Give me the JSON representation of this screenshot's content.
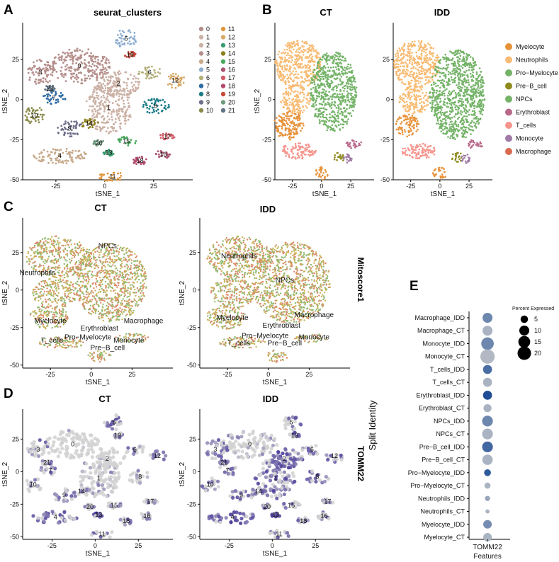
{
  "panels": {
    "a": {
      "letter": "A",
      "title": "seurat_clusters"
    },
    "b": {
      "letter": "B",
      "title_ct": "CT",
      "title_idd": "IDD"
    },
    "c": {
      "letter": "C",
      "title_ct": "CT",
      "title_idd": "IDD",
      "side_label": "Mitoscore1"
    },
    "d": {
      "letter": "D",
      "title_ct": "CT",
      "title_idd": "IDD",
      "side_label": "TOMM22"
    },
    "e": {
      "letter": "E"
    }
  },
  "colors": {
    "grey": "#d3d3d3",
    "expr_low": "#c7bfdf",
    "expr_high": "#4b3d9a",
    "mito1": "#c8b45a",
    "mito2": "#d98a6a",
    "mito3": "#8fb870",
    "dot_dark": "#1f4e96",
    "dot_grey": "#cccccc"
  },
  "chart_data": [
    {
      "id": "A",
      "type": "scatter",
      "title": "seurat_clusters",
      "xlabel": "tSNE_1",
      "ylabel": "tSNE_2",
      "xticks": [
        -25,
        0,
        25
      ],
      "yticks": [
        -50,
        -25,
        0,
        25
      ],
      "xlim": [
        -42,
        45
      ],
      "ylim": [
        -50,
        48
      ],
      "legend": [
        "0",
        "1",
        "2",
        "3",
        "4",
        "5",
        "6",
        "7",
        "8",
        "9",
        "10",
        "11",
        "12",
        "13",
        "14",
        "15",
        "16",
        "17",
        "18",
        "19",
        "20",
        "21"
      ],
      "cluster_colors": [
        "#b58f8c",
        "#cbb0a4",
        "#cbb0a4",
        "#b58f8c",
        "#c7a98b",
        "#8faed1",
        "#b5b07a",
        "#2c6aa3",
        "#1c7d88",
        "#6e6f8c",
        "#8a8a4c",
        "#e0953a",
        "#d7a968",
        "#3a9b6e",
        "#8b7f1c",
        "#4aa85d",
        "#a8556f",
        "#d05d67",
        "#b34a6e",
        "#c54a3a",
        "#6f9a7d",
        "#5f7385"
      ],
      "clusters": [
        {
          "id": "0",
          "cx": -13,
          "cy": 21,
          "rx": 16,
          "ry": 11
        },
        {
          "id": "1",
          "cx": 2,
          "cy": -5,
          "rx": 12,
          "ry": 16
        },
        {
          "id": "2",
          "cx": 7,
          "cy": 10,
          "rx": 11,
          "ry": 8
        },
        {
          "id": "3",
          "cx": -33,
          "cy": 17,
          "rx": 7,
          "ry": 8
        },
        {
          "id": "4",
          "cx": -23,
          "cy": -35,
          "rx": 14,
          "ry": 5
        },
        {
          "id": "5",
          "cx": 11,
          "cy": 38,
          "rx": 6,
          "ry": 6
        },
        {
          "id": "6",
          "cx": 23,
          "cy": 17,
          "rx": 6,
          "ry": 4
        },
        {
          "id": "7",
          "cx": -26,
          "cy": 1,
          "rx": 6,
          "ry": 4
        },
        {
          "id": "8",
          "cx": 26,
          "cy": -4,
          "rx": 7,
          "ry": 5
        },
        {
          "id": "9",
          "cx": -18,
          "cy": -18,
          "rx": 7,
          "ry": 5
        },
        {
          "id": "10",
          "cx": -36,
          "cy": -10,
          "rx": 5,
          "ry": 6
        },
        {
          "id": "11",
          "cx": 4,
          "cy": -48,
          "rx": 7,
          "ry": 3
        },
        {
          "id": "12",
          "cx": 36,
          "cy": 12,
          "rx": 5,
          "ry": 5
        },
        {
          "id": "13",
          "cx": 2,
          "cy": -33,
          "rx": 3,
          "ry": 2
        },
        {
          "id": "14",
          "cx": -8,
          "cy": -15,
          "rx": 5,
          "ry": 3
        },
        {
          "id": "15",
          "cx": 11,
          "cy": -26,
          "rx": 5,
          "ry": 3
        },
        {
          "id": "16",
          "cx": 30,
          "cy": -34,
          "rx": 4,
          "ry": 3
        },
        {
          "id": "17",
          "cx": 32,
          "cy": -23,
          "rx": 4,
          "ry": 2
        },
        {
          "id": "18",
          "cx": 18,
          "cy": -38,
          "rx": 4,
          "ry": 3
        },
        {
          "id": "19",
          "cx": 13,
          "cy": 28,
          "rx": 3,
          "ry": 2
        },
        {
          "id": "20",
          "cx": -3,
          "cy": -27,
          "rx": 3,
          "ry": 2
        },
        {
          "id": "21",
          "cx": -28,
          "cy": 7,
          "rx": 3,
          "ry": 2
        }
      ]
    },
    {
      "id": "B",
      "type": "scatter",
      "titles": [
        "CT",
        "IDD"
      ],
      "xlabel": "tSNE_1",
      "ylabel": "tSNE_2",
      "xticks": [
        -25,
        0,
        25
      ],
      "yticks": [
        -50,
        -25,
        0,
        25
      ],
      "xlim": [
        -40,
        45
      ],
      "ylim": [
        -50,
        48
      ],
      "legend": [
        "Myelocyte",
        "Neutrophils",
        "Pro−Myelocyte",
        "Pre−B_cell",
        "NPCs",
        "Erythroblast",
        "T_cells",
        "Monocyte",
        "Macrophage"
      ],
      "celltype_colors": [
        "#e8923a",
        "#f8bb73",
        "#74b368",
        "#8f8a1e",
        "#74b368",
        "#b8688a",
        "#f5948c",
        "#a07aa6",
        "#d96a4e"
      ],
      "regions_ct": [
        {
          "type": "Neutrophils",
          "cx": -20,
          "cy": 22,
          "rx": 20,
          "ry": 15
        },
        {
          "type": "Neutrophils",
          "cx": -22,
          "cy": 0,
          "rx": 13,
          "ry": 9
        },
        {
          "type": "Myelocyte",
          "cx": -28,
          "cy": -16,
          "rx": 13,
          "ry": 9
        },
        {
          "type": "NPCs",
          "cx": 10,
          "cy": 5,
          "rx": 20,
          "ry": 25
        },
        {
          "type": "T_cells",
          "cx": -20,
          "cy": -32,
          "rx": 15,
          "ry": 5
        },
        {
          "type": "Myelocyte",
          "cx": 0,
          "cy": -46,
          "rx": 6,
          "ry": 4
        },
        {
          "type": "Pre−B_cell",
          "cx": 15,
          "cy": -36,
          "rx": 5,
          "ry": 3
        },
        {
          "type": "Erythroblast",
          "cx": 28,
          "cy": -28,
          "rx": 7,
          "ry": 3
        },
        {
          "type": "Monocyte",
          "cx": 22,
          "cy": -37,
          "rx": 4,
          "ry": 3
        }
      ],
      "regions_idd": [
        {
          "type": "Neutrophils",
          "cx": -20,
          "cy": 22,
          "rx": 20,
          "ry": 15
        },
        {
          "type": "Neutrophils",
          "cx": -22,
          "cy": 0,
          "rx": 13,
          "ry": 9
        },
        {
          "type": "Myelocyte",
          "cx": -28,
          "cy": -16,
          "rx": 10,
          "ry": 7
        },
        {
          "type": "NPCs",
          "cx": 15,
          "cy": 3,
          "rx": 24,
          "ry": 28
        },
        {
          "type": "T_cells",
          "cx": -18,
          "cy": -32,
          "rx": 15,
          "ry": 5
        },
        {
          "type": "Myelocyte",
          "cx": 0,
          "cy": -46,
          "rx": 6,
          "ry": 4
        },
        {
          "type": "Pre−B_cell",
          "cx": 15,
          "cy": -36,
          "rx": 5,
          "ry": 3
        },
        {
          "type": "Erythroblast",
          "cx": 30,
          "cy": -28,
          "rx": 7,
          "ry": 3
        },
        {
          "type": "Monocyte",
          "cx": 22,
          "cy": -37,
          "rx": 4,
          "ry": 3
        }
      ]
    },
    {
      "id": "C",
      "type": "scatter",
      "titles": [
        "CT",
        "IDD"
      ],
      "feature": "Mitoscore1",
      "xlabel": "tSNE_1",
      "ylabel": "tSNE_2",
      "xticks": [
        -25,
        0,
        25
      ],
      "yticks": [
        -50,
        -25,
        0,
        25
      ],
      "xlim": [
        -42,
        50
      ],
      "ylim": [
        -52,
        48
      ],
      "annotations_ct": [
        {
          "text": "NPCs",
          "x": 10,
          "y": 28
        },
        {
          "text": "Neutrophils",
          "x": -33,
          "y": 10
        },
        {
          "text": "Myelocyte",
          "x": -25,
          "y": -22
        },
        {
          "text": "Erythroblast",
          "x": 5,
          "y": -27
        },
        {
          "text": "Macrophage",
          "x": 32,
          "y": -22
        },
        {
          "text": "T_cells",
          "x": -24,
          "y": -35
        },
        {
          "text": "Pro−Myelocyte",
          "x": -2,
          "y": -33
        },
        {
          "text": "Monocyte",
          "x": 23,
          "y": -35
        },
        {
          "text": "Pre−B_cell",
          "x": 10,
          "y": -40
        }
      ],
      "annotations_idd": [
        {
          "text": "Neutrophils",
          "x": -18,
          "y": 21
        },
        {
          "text": "NPCs",
          "x": 10,
          "y": 5
        },
        {
          "text": "Myelocyte",
          "x": -22,
          "y": -20
        },
        {
          "text": "Macrophage",
          "x": 28,
          "y": -18
        },
        {
          "text": "Erythroblast",
          "x": 8,
          "y": -25
        },
        {
          "text": "Pro−Myelocyte",
          "x": -2,
          "y": -32
        },
        {
          "text": "T_cells",
          "x": -18,
          "y": -37
        },
        {
          "text": "Pre−B_cell",
          "x": 10,
          "y": -37
        },
        {
          "text": "Monocyte",
          "x": 28,
          "y": -33
        }
      ],
      "regions_ct": [
        {
          "cx": -20,
          "cy": 22,
          "rx": 20,
          "ry": 14
        },
        {
          "cx": -22,
          "cy": -2,
          "rx": 14,
          "ry": 10
        },
        {
          "cx": -26,
          "cy": -18,
          "rx": 12,
          "ry": 8
        },
        {
          "cx": 12,
          "cy": 5,
          "rx": 22,
          "ry": 26
        },
        {
          "cx": -18,
          "cy": -35,
          "rx": 14,
          "ry": 4
        },
        {
          "cx": 5,
          "cy": -44,
          "rx": 7,
          "ry": 4
        },
        {
          "cx": 25,
          "cy": -32,
          "rx": 10,
          "ry": 3
        }
      ],
      "regions_idd": [
        {
          "cx": -18,
          "cy": 22,
          "rx": 20,
          "ry": 14
        },
        {
          "cx": -22,
          "cy": -2,
          "rx": 14,
          "ry": 10
        },
        {
          "cx": -26,
          "cy": -18,
          "rx": 12,
          "ry": 8
        },
        {
          "cx": 14,
          "cy": 5,
          "rx": 24,
          "ry": 27
        },
        {
          "cx": -16,
          "cy": -35,
          "rx": 14,
          "ry": 4
        },
        {
          "cx": 5,
          "cy": -44,
          "rx": 7,
          "ry": 4
        },
        {
          "cx": 26,
          "cy": -32,
          "rx": 10,
          "ry": 3
        }
      ]
    },
    {
      "id": "D",
      "type": "scatter",
      "titles": [
        "CT",
        "IDD"
      ],
      "feature": "TOMM22",
      "xlabel": "tSNE_1",
      "ylabel": "tSNE_2",
      "xticks": [
        -25,
        0,
        25
      ],
      "yticks": [
        -50,
        -25,
        0,
        25
      ],
      "xlim": [
        -42,
        45
      ],
      "ylim": [
        -52,
        48
      ],
      "cluster_labels": [
        "0",
        "1",
        "2",
        "3",
        "4",
        "5",
        "6",
        "7",
        "8",
        "9",
        "10",
        "11",
        "12",
        "13",
        "14",
        "15",
        "16",
        "17",
        "18",
        "19",
        "20",
        "21"
      ],
      "expression_ct": [
        0.1,
        0.3,
        0.15,
        0.55,
        0.7,
        0.75,
        0.5,
        0.6,
        0.35,
        0.6,
        0.5,
        0.65,
        0.7,
        0.8,
        0.6,
        0.55,
        0.6,
        0.5,
        0.6,
        0.5,
        0.55,
        0.6
      ],
      "expression_idd": [
        0.35,
        0.7,
        0.75,
        0.6,
        0.75,
        0.6,
        0.65,
        0.6,
        0.7,
        0.6,
        0.5,
        0.65,
        0.7,
        0.95,
        0.6,
        0.55,
        0.6,
        0.55,
        0.65,
        0.65,
        0.6,
        0.6
      ]
    },
    {
      "id": "E",
      "type": "scatter",
      "subtype": "dotplot",
      "xlabel": "Features",
      "ylabel": "Split Identity",
      "x_categories": [
        "TOMM22"
      ],
      "size_legend_title": "Percent Expressed",
      "size_legend": [
        5,
        10,
        15,
        20
      ],
      "rows": [
        {
          "label": "Macrophage_IDD",
          "pct": 10,
          "expr": 0.55
        },
        {
          "label": "Macrophage_CT",
          "pct": 10,
          "expr": 0.2
        },
        {
          "label": "Monocyte_IDD",
          "pct": 17,
          "expr": 0.55
        },
        {
          "label": "Monocyte_CT",
          "pct": 23,
          "expr": 0.15
        },
        {
          "label": "T_cells_IDD",
          "pct": 8,
          "expr": 0.75
        },
        {
          "label": "T_cells_CT",
          "pct": 8,
          "expr": 0.2
        },
        {
          "label": "Erythroblast_IDD",
          "pct": 8,
          "expr": 1.0
        },
        {
          "label": "Erythroblast_CT",
          "pct": 6,
          "expr": 0.2
        },
        {
          "label": "NPCs_IDD",
          "pct": 12,
          "expr": 0.55
        },
        {
          "label": "NPCs_CT",
          "pct": 12,
          "expr": 0.2
        },
        {
          "label": "Pre−B_cell_IDD",
          "pct": 12,
          "expr": 0.8
        },
        {
          "label": "Pre−B_cell_CT",
          "pct": 11,
          "expr": 0.2
        },
        {
          "label": "Pro−Myelocyte_IDD",
          "pct": 4,
          "expr": 0.9
        },
        {
          "label": "Pro−Myelocyte_CT",
          "pct": 3,
          "expr": 0.2
        },
        {
          "label": "Neutrophils_IDD",
          "pct": 2,
          "expr": 0.3
        },
        {
          "label": "Neutrophils_CT",
          "pct": 1,
          "expr": 0.2
        },
        {
          "label": "Myelocyte_IDD",
          "pct": 7,
          "expr": 0.5
        },
        {
          "label": "Myelocyte_CT",
          "pct": 7,
          "expr": 0.2
        }
      ]
    }
  ]
}
